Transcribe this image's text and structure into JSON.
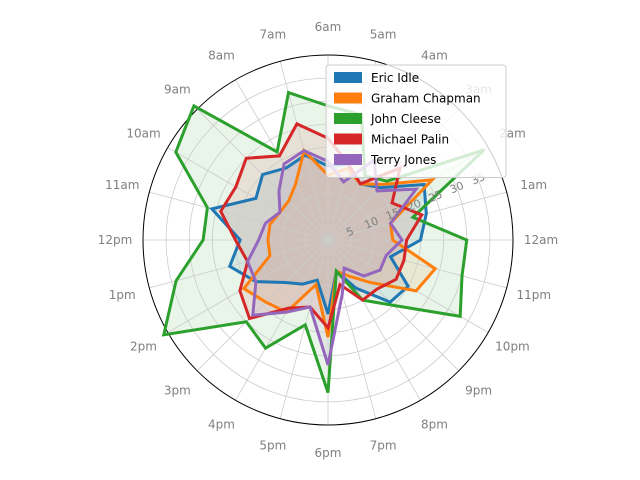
{
  "chart_data": {
    "type": "radar",
    "title": "",
    "categories": [
      "12am",
      "1am",
      "2am",
      "3am",
      "4am",
      "5am",
      "6am",
      "7am",
      "8am",
      "9am",
      "10am",
      "11am",
      "12pm",
      "1pm",
      "2pm",
      "3pm",
      "4pm",
      "5pm",
      "6pm",
      "7pm",
      "8pm",
      "9pm",
      "10pm",
      "11pm"
    ],
    "radial_ticks": [
      "5",
      "10",
      "15",
      "20",
      "25",
      "30",
      "35"
    ],
    "rlim": [
      0,
      40
    ],
    "grid": true,
    "legend_position": "top-right",
    "series": [
      {
        "name": "Eric Idle",
        "color": "#1f77b4",
        "values": [
          20,
          22,
          24,
          16,
          14,
          17,
          16,
          19,
          18,
          20,
          18,
          26,
          19,
          22,
          18,
          13,
          11,
          9,
          16,
          7,
          12,
          19,
          20,
          14
        ]
      },
      {
        "name": "Graham Chapman",
        "color": "#ff7f0e",
        "values": [
          14,
          14,
          26,
          17,
          14,
          16,
          14,
          20,
          14,
          12,
          12,
          13,
          13,
          13,
          21,
          19,
          18,
          10,
          21,
          7,
          9,
          13,
          22,
          24
        ]
      },
      {
        "name": "John Cleese",
        "color": "#2ca02c",
        "values": [
          30,
          19,
          39,
          18,
          16,
          28,
          29,
          33,
          22,
          41,
          38,
          27,
          27,
          34,
          41,
          25,
          27,
          19,
          33,
          7,
          15,
          20,
          33,
          30
        ]
      },
      {
        "name": "Michael Palin",
        "color": "#d62728",
        "values": [
          17,
          21,
          16,
          22,
          14,
          17,
          22,
          26,
          21,
          25,
          23,
          24,
          20,
          18,
          22,
          24,
          17,
          15,
          19,
          10,
          15,
          15,
          17,
          17
        ]
      },
      {
        "name": "Terry Jones",
        "color": "#9467bd",
        "values": [
          16,
          14,
          22,
          15,
          20,
          13,
          17,
          20,
          19,
          15,
          12,
          14,
          15,
          18,
          18,
          23,
          18,
          15,
          27,
          12,
          7,
          11,
          13,
          13
        ]
      }
    ]
  }
}
